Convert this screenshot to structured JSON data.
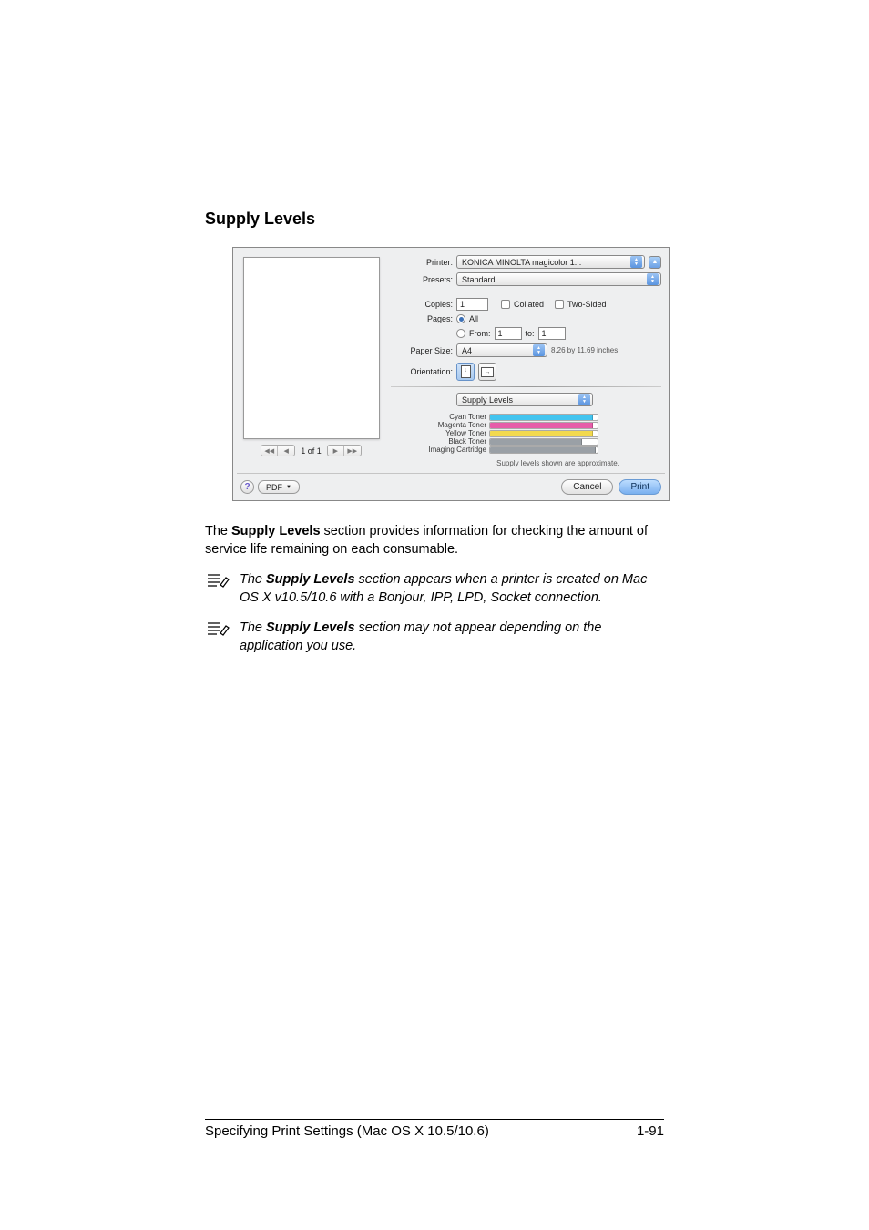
{
  "section_title": "Supply Levels",
  "dialog": {
    "printer": {
      "label": "Printer:",
      "value": "KONICA MINOLTA magicolor 1..."
    },
    "presets": {
      "label": "Presets:",
      "value": "Standard"
    },
    "copies": {
      "label": "Copies:",
      "value": "1",
      "collated_label": "Collated",
      "two_sided_label": "Two-Sided"
    },
    "pages": {
      "label": "Pages:",
      "all_label": "All",
      "from_label": "From:",
      "from_value": "1",
      "to_label": "to:",
      "to_value": "1"
    },
    "paper_size": {
      "label": "Paper Size:",
      "value": "A4",
      "dims": "8.26 by 11.69 inches"
    },
    "orientation": {
      "label": "Orientation:"
    },
    "panel": "Supply Levels",
    "supplies": [
      {
        "label": "Cyan Toner",
        "pct": 96,
        "color": "#42c4ef"
      },
      {
        "label": "Magenta Toner",
        "pct": 96,
        "color": "#e65da9"
      },
      {
        "label": "Yellow Toner",
        "pct": 96,
        "color": "#f2d94e"
      },
      {
        "label": "Black Toner",
        "pct": 86,
        "color": "#9aa0a6"
      },
      {
        "label": "Imaging Cartridge",
        "pct": 98,
        "color": "#9aa0a6"
      }
    ],
    "footnote": "Supply levels shown are approximate.",
    "preview": {
      "page_count": "1 of 1"
    },
    "help": "?",
    "pdf_label": "PDF",
    "cancel_label": "Cancel",
    "print_label": "Print"
  },
  "body": {
    "para1a": "The ",
    "para1b": "Supply Levels",
    "para1c": " section provides information for checking the amount of service life remaining on each consumable.",
    "note1a": "The ",
    "note1b": "Supply Levels",
    "note1c": " section appears when a printer is created on Mac OS X v10.5/10.6 with a Bonjour, IPP, LPD, Socket connection.",
    "note2a": "The ",
    "note2b": "Supply Levels",
    "note2c": " section may not appear depending on the application you use."
  },
  "footer": {
    "left": "Specifying Print Settings (Mac OS X 10.5/10.6)",
    "right": "1-91"
  }
}
